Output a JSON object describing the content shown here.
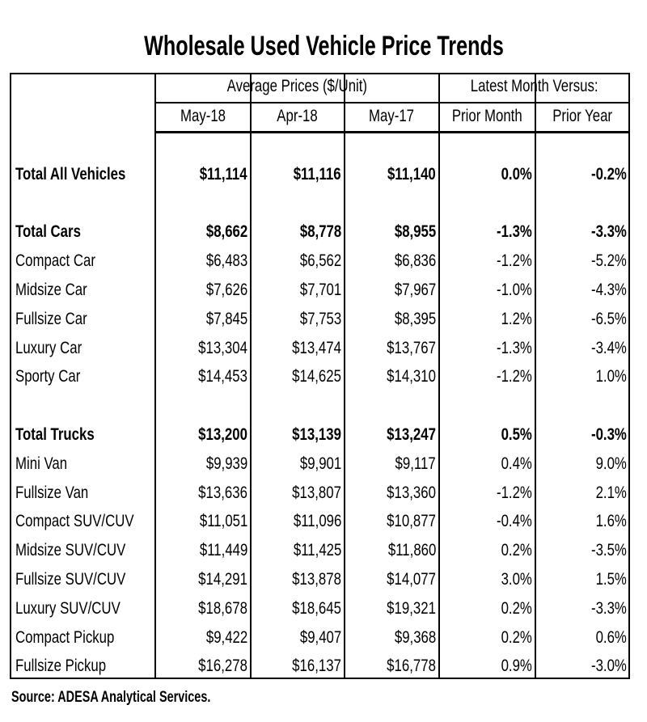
{
  "title": "Wholesale Used Vehicle Price Trends",
  "header": {
    "group_prices": "Average Prices ($/Unit)",
    "group_change": "Latest Month Versus:",
    "columns": [
      "May-18",
      "Apr-18",
      "May-17",
      "Prior Month",
      "Prior Year"
    ]
  },
  "groups": [
    {
      "total": {
        "label": "Total All Vehicles",
        "values": [
          "$11,114",
          "$11,116",
          "$11,140",
          "0.0%",
          "-0.2%"
        ]
      },
      "items": []
    },
    {
      "total": {
        "label": "Total Cars",
        "values": [
          "$8,662",
          "$8,778",
          "$8,955",
          "-1.3%",
          "-3.3%"
        ]
      },
      "items": [
        {
          "label": "Compact Car",
          "values": [
            "$6,483",
            "$6,562",
            "$6,836",
            "-1.2%",
            "-5.2%"
          ]
        },
        {
          "label": "Midsize Car",
          "values": [
            "$7,626",
            "$7,701",
            "$7,967",
            "-1.0%",
            "-4.3%"
          ]
        },
        {
          "label": "Fullsize Car",
          "values": [
            "$7,845",
            "$7,753",
            "$8,395",
            "1.2%",
            "-6.5%"
          ]
        },
        {
          "label": "Luxury Car",
          "values": [
            "$13,304",
            "$13,474",
            "$13,767",
            "-1.3%",
            "-3.4%"
          ]
        },
        {
          "label": "Sporty Car",
          "values": [
            "$14,453",
            "$14,625",
            "$14,310",
            "-1.2%",
            "1.0%"
          ]
        }
      ]
    },
    {
      "total": {
        "label": "Total Trucks",
        "values": [
          "$13,200",
          "$13,139",
          "$13,247",
          "0.5%",
          "-0.3%"
        ]
      },
      "items": [
        {
          "label": "Mini Van",
          "values": [
            "$9,939",
            "$9,901",
            "$9,117",
            "0.4%",
            "9.0%"
          ]
        },
        {
          "label": "Fullsize Van",
          "values": [
            "$13,636",
            "$13,807",
            "$13,360",
            "-1.2%",
            "2.1%"
          ]
        },
        {
          "label": "Compact SUV/CUV",
          "values": [
            "$11,051",
            "$11,096",
            "$10,877",
            "-0.4%",
            "1.6%"
          ]
        },
        {
          "label": "Midsize SUV/CUV",
          "values": [
            "$11,449",
            "$11,425",
            "$11,860",
            "0.2%",
            "-3.5%"
          ]
        },
        {
          "label": "Fullsize SUV/CUV",
          "values": [
            "$14,291",
            "$13,878",
            "$14,077",
            "3.0%",
            "1.5%"
          ]
        },
        {
          "label": "Luxury SUV/CUV",
          "values": [
            "$18,678",
            "$18,645",
            "$19,321",
            "0.2%",
            "-3.3%"
          ]
        },
        {
          "label": "Compact Pickup",
          "values": [
            "$9,422",
            "$9,407",
            "$9,368",
            "0.2%",
            "0.6%"
          ]
        },
        {
          "label": "Fullsize Pickup",
          "values": [
            "$16,278",
            "$16,137",
            "$16,778",
            "0.9%",
            "-3.0%"
          ]
        }
      ]
    }
  ],
  "source": "Source: ADESA Analytical Services."
}
